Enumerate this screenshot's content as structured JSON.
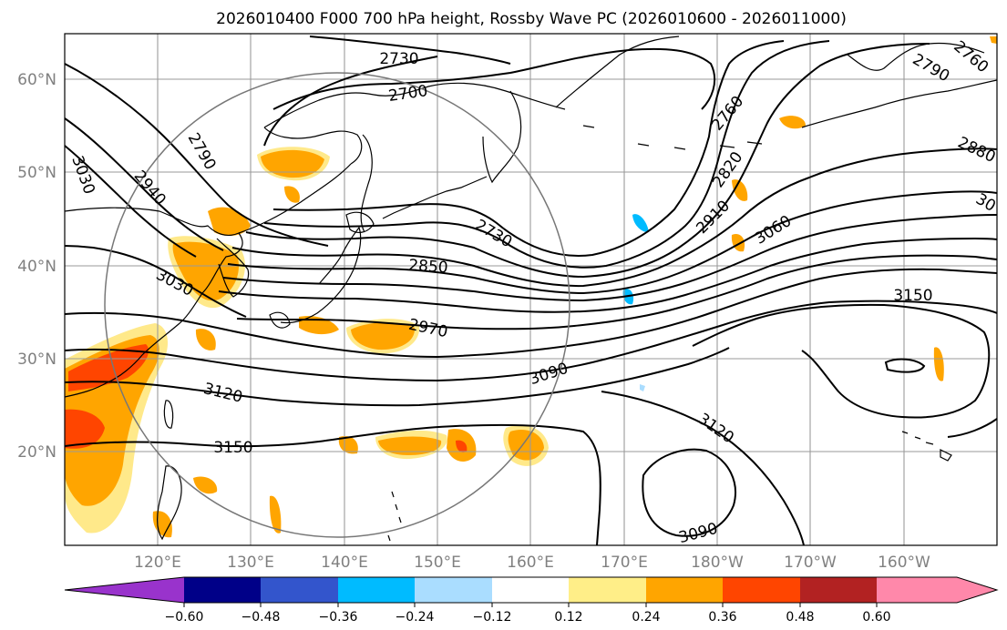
{
  "title": "2026010400 F000 700 hPa height, Rossby Wave PC (2026010600 - 2026011000)",
  "lat_labels": [
    "60°N",
    "50°N",
    "40°N",
    "30°N",
    "20°N"
  ],
  "lon_labels": [
    "120°E",
    "130°E",
    "140°E",
    "150°E",
    "160°E",
    "170°E",
    "180°W",
    "170°W",
    "160°W"
  ],
  "colorbar": {
    "ticks": [
      "−0.60",
      "−0.48",
      "−0.36",
      "−0.24",
      "−0.12",
      "0.12",
      "0.24",
      "0.36",
      "0.48",
      "0.60"
    ],
    "colors": [
      "#9933cc",
      "#000088",
      "#3355cc",
      "#00bbff",
      "#aaddff",
      "#ffffff",
      "#ffee88",
      "#ffa500",
      "#ff4500",
      "#b22222",
      "#ff88aa"
    ]
  },
  "contour_labels": {
    "c2730a": "2730",
    "c2700": "2700",
    "c2790a": "2790",
    "c2760a": "2760",
    "c3030a": "3030",
    "c2940": "2940",
    "c2730b": "2730",
    "c2760b": "2760",
    "c2820": "2820",
    "c2880": "2880",
    "c3000": "30",
    "c2910": "2910",
    "c3060": "3060",
    "c2850": "2850",
    "c3030b": "3030",
    "c2970": "2970",
    "c3150a": "3150",
    "c3090a": "3090",
    "c3120a": "3120",
    "c3150b": "3150",
    "c3120b": "3120",
    "c3090b": "3090"
  }
}
